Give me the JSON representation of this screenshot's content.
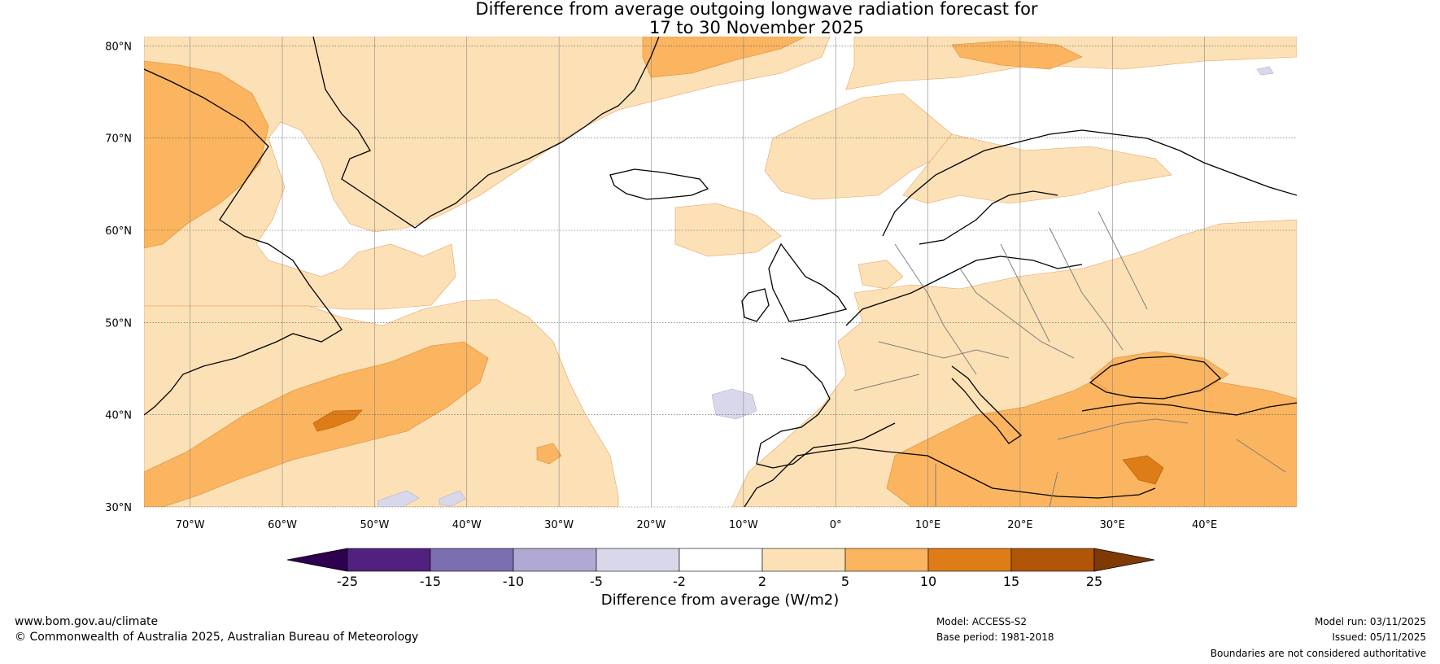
{
  "title": {
    "line1": "Difference from average outgoing longwave radiation forecast for",
    "line2": "17 to 30 November 2025"
  },
  "map": {
    "lon_range": [
      -75,
      50
    ],
    "lat_range": [
      30,
      81
    ],
    "lat_ticks": [
      {
        "value": 80,
        "label": "80°N"
      },
      {
        "value": 70,
        "label": "70°N"
      },
      {
        "value": 60,
        "label": "60°N"
      },
      {
        "value": 50,
        "label": "50°N"
      },
      {
        "value": 40,
        "label": "40°N"
      },
      {
        "value": 30,
        "label": "30°N"
      }
    ],
    "lon_ticks": [
      {
        "value": -70,
        "label": "70°W"
      },
      {
        "value": -60,
        "label": "60°W"
      },
      {
        "value": -50,
        "label": "50°W"
      },
      {
        "value": -40,
        "label": "40°W"
      },
      {
        "value": -30,
        "label": "30°W"
      },
      {
        "value": -20,
        "label": "20°W"
      },
      {
        "value": -10,
        "label": "10°W"
      },
      {
        "value": 0,
        "label": "0°"
      },
      {
        "value": 10,
        "label": "10°E"
      },
      {
        "value": 20,
        "label": "20°E"
      },
      {
        "value": 30,
        "label": "30°E"
      },
      {
        "value": 40,
        "label": "40°E"
      }
    ]
  },
  "colorbar": {
    "label": "Difference from average (W/m2)",
    "boundaries": [
      "-25",
      "-15",
      "-10",
      "-5",
      "-2",
      "2",
      "5",
      "10",
      "15",
      "25"
    ],
    "colors": [
      "#50217f",
      "#7b6fb0",
      "#b1a9d4",
      "#d9d8ea",
      "#ffffff",
      "#fde1b6",
      "#fbb45f",
      "#de7c17",
      "#b15606"
    ],
    "extend_low_color": "#2d0050",
    "extend_high_color": "#7f3a04"
  },
  "legend_colors": {
    "pos_light": "#fde1b6",
    "pos_mid": "#fbb45f",
    "pos_strong": "#de7c17",
    "neg_light": "#d9d8ea",
    "coast": "#000000",
    "border": "#7f7f7f"
  },
  "footer": {
    "website": "www.bom.gov.au/climate",
    "copyright": "© Commonwealth of Australia 2025, Australian Bureau of Meteorology",
    "model": "Model: ACCESS-S2",
    "base_period": "Base period: 1981-2018",
    "model_run": "Model run: 03/11/2025",
    "issued": "Issued: 05/11/2025",
    "disclaimer": "Boundaries are not considered authoritative"
  }
}
